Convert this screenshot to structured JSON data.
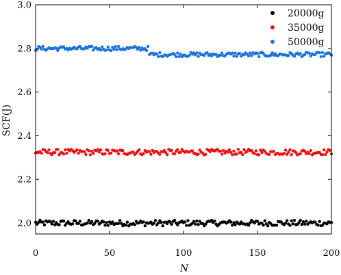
{
  "chart_data": {
    "type": "scatter",
    "xlabel": "N",
    "ylabel": "SCF(J)",
    "xlim": [
      0,
      200
    ],
    "ylim": [
      1.95,
      3.0
    ],
    "xticks": [
      "0",
      "50",
      "100",
      "150",
      "200"
    ],
    "yticks": [
      "2.0",
      "2.2",
      "2.4",
      "2.6",
      "2.8",
      "3.0"
    ],
    "legend_position": "top-right",
    "grid": false,
    "series": [
      {
        "name": "20000g",
        "color": "#000000",
        "level": 2.0,
        "spread": 0.013
      },
      {
        "name": "35000g",
        "color": "#ee1111",
        "level": 2.325,
        "spread": 0.013
      },
      {
        "name": "50000g",
        "color": "#1a73d9",
        "level_start": 2.8,
        "level_end": 2.772,
        "step_at": 77,
        "spread": 0.01
      }
    ]
  }
}
